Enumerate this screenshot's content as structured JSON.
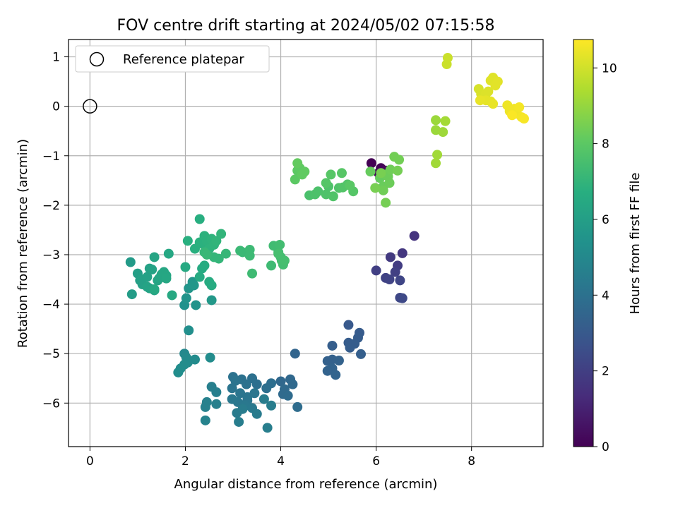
{
  "chart_data": {
    "type": "scatter",
    "title": "FOV centre drift starting at 2024/05/02 07:15:58",
    "xlabel": "Angular distance from reference (arcmin)",
    "ylabel": "Rotation from reference (arcmin)",
    "xlim": [
      -0.45,
      9.5
    ],
    "ylim": [
      -6.88,
      1.35
    ],
    "xticks": [
      0,
      2,
      4,
      6,
      8
    ],
    "yticks": [
      1,
      0,
      -1,
      -2,
      -3,
      -4,
      -5,
      -6
    ],
    "grid": true,
    "legend": {
      "position": "top-left",
      "entries": [
        {
          "label": "Reference platepar",
          "marker": "open-circle"
        }
      ]
    },
    "reference_point": {
      "x": 0,
      "y": 0
    },
    "colorbar": {
      "label": "Hours from first FF file",
      "range": [
        0,
        10.75
      ],
      "ticks": [
        0,
        2,
        4,
        6,
        8,
        10
      ],
      "colormap": "viridis"
    },
    "points": [
      [
        5.9,
        -1.15,
        0.0
      ],
      [
        6.1,
        -1.25,
        0.1
      ],
      [
        6.05,
        -1.35,
        0.15
      ],
      [
        6.15,
        -1.38,
        0.2
      ],
      [
        6.2,
        -1.3,
        0.25
      ],
      [
        6.8,
        -2.62,
        1.6
      ],
      [
        6.55,
        -2.97,
        1.7
      ],
      [
        6.3,
        -3.05,
        1.8
      ],
      [
        6.45,
        -3.22,
        1.9
      ],
      [
        6.0,
        -3.32,
        2.0
      ],
      [
        6.4,
        -3.35,
        2.05
      ],
      [
        6.2,
        -3.47,
        2.1
      ],
      [
        6.28,
        -3.5,
        2.15
      ],
      [
        6.5,
        -3.52,
        2.2
      ],
      [
        6.5,
        -3.87,
        2.3
      ],
      [
        6.55,
        -3.88,
        2.35
      ],
      [
        5.42,
        -4.42,
        3.0
      ],
      [
        5.65,
        -4.58,
        3.05
      ],
      [
        5.62,
        -4.68,
        3.1
      ],
      [
        5.42,
        -4.78,
        3.1
      ],
      [
        5.55,
        -4.8,
        3.15
      ],
      [
        5.45,
        -4.88,
        3.15
      ],
      [
        5.08,
        -4.84,
        3.2
      ],
      [
        5.68,
        -5.01,
        3.25
      ],
      [
        4.98,
        -5.15,
        3.3
      ],
      [
        5.08,
        -5.12,
        3.3
      ],
      [
        5.22,
        -5.14,
        3.35
      ],
      [
        5.08,
        -5.3,
        3.4
      ],
      [
        4.98,
        -5.35,
        3.4
      ],
      [
        5.15,
        -5.43,
        3.45
      ],
      [
        4.3,
        -5.0,
        3.5
      ],
      [
        4.0,
        -5.56,
        3.6
      ],
      [
        4.2,
        -5.52,
        3.6
      ],
      [
        4.25,
        -5.62,
        3.65
      ],
      [
        4.08,
        -5.72,
        3.7
      ],
      [
        4.05,
        -5.82,
        3.7
      ],
      [
        4.15,
        -5.85,
        3.75
      ],
      [
        4.35,
        -6.08,
        3.8
      ],
      [
        3.8,
        -5.6,
        3.85
      ],
      [
        3.7,
        -5.7,
        3.9
      ],
      [
        3.5,
        -5.62,
        3.9
      ],
      [
        3.4,
        -5.5,
        3.95
      ],
      [
        3.28,
        -5.62,
        4.0
      ],
      [
        3.18,
        -5.52,
        4.0
      ],
      [
        3.0,
        -5.47,
        4.05
      ],
      [
        3.05,
        -5.55,
        4.1
      ],
      [
        2.98,
        -5.7,
        4.1
      ],
      [
        3.15,
        -5.8,
        4.15
      ],
      [
        3.3,
        -5.88,
        4.15
      ],
      [
        3.45,
        -5.8,
        4.2
      ],
      [
        3.3,
        -5.95,
        4.2
      ],
      [
        3.1,
        -5.98,
        4.25
      ],
      [
        2.98,
        -5.92,
        4.3
      ],
      [
        3.25,
        -6.05,
        4.3
      ],
      [
        3.4,
        -6.1,
        4.35
      ],
      [
        3.5,
        -6.22,
        4.4
      ],
      [
        3.08,
        -6.2,
        4.4
      ],
      [
        3.2,
        -6.12,
        4.45
      ],
      [
        3.65,
        -5.92,
        4.45
      ],
      [
        3.8,
        -6.05,
        4.5
      ],
      [
        3.12,
        -6.38,
        4.5
      ],
      [
        3.72,
        -6.5,
        4.55
      ],
      [
        2.55,
        -5.67,
        4.6
      ],
      [
        2.65,
        -5.78,
        4.6
      ],
      [
        2.65,
        -6.02,
        4.65
      ],
      [
        2.45,
        -5.98,
        4.7
      ],
      [
        2.42,
        -6.08,
        4.7
      ],
      [
        2.42,
        -6.35,
        4.75
      ],
      [
        1.98,
        -5.0,
        5.0
      ],
      [
        2.02,
        -5.08,
        5.05
      ],
      [
        2.2,
        -5.12,
        5.1
      ],
      [
        2.05,
        -5.18,
        5.1
      ],
      [
        1.98,
        -5.22,
        5.15
      ],
      [
        2.52,
        -5.08,
        5.15
      ],
      [
        1.9,
        -5.3,
        5.2
      ],
      [
        1.85,
        -5.38,
        5.2
      ],
      [
        2.07,
        -4.53,
        5.3
      ],
      [
        1.98,
        -4.02,
        5.4
      ],
      [
        2.22,
        -4.02,
        5.45
      ],
      [
        2.02,
        -3.88,
        5.5
      ],
      [
        2.07,
        -3.68,
        5.55
      ],
      [
        2.15,
        -3.55,
        5.6
      ],
      [
        2.18,
        -3.62,
        5.65
      ],
      [
        2.55,
        -3.92,
        5.7
      ],
      [
        0.85,
        -3.15,
        5.8
      ],
      [
        0.88,
        -3.8,
        5.9
      ],
      [
        1.0,
        -3.38,
        6.0
      ],
      [
        1.05,
        -3.52,
        6.0
      ],
      [
        1.08,
        -3.5,
        6.05
      ],
      [
        1.1,
        -3.6,
        6.05
      ],
      [
        1.2,
        -3.45,
        6.1
      ],
      [
        1.25,
        -3.28,
        6.1
      ],
      [
        1.3,
        -3.3,
        6.15
      ],
      [
        1.25,
        -3.68,
        6.15
      ],
      [
        1.35,
        -3.72,
        6.2
      ],
      [
        1.2,
        -3.65,
        6.2
      ],
      [
        1.35,
        -3.05,
        6.25
      ],
      [
        1.42,
        -3.52,
        6.25
      ],
      [
        1.45,
        -3.48,
        6.3
      ],
      [
        1.5,
        -3.4,
        6.3
      ],
      [
        1.55,
        -3.35,
        6.35
      ],
      [
        1.6,
        -3.42,
        6.35
      ],
      [
        1.6,
        -3.48,
        6.4
      ],
      [
        1.65,
        -2.98,
        6.4
      ],
      [
        1.72,
        -3.82,
        6.45
      ],
      [
        1.35,
        -3.7,
        6.45
      ],
      [
        2.0,
        -3.25,
        6.5
      ],
      [
        2.3,
        -3.45,
        6.55
      ],
      [
        2.35,
        -3.28,
        6.55
      ],
      [
        2.4,
        -3.22,
        6.6
      ],
      [
        2.5,
        -3.55,
        6.6
      ],
      [
        2.55,
        -3.62,
        6.6
      ],
      [
        2.3,
        -2.28,
        6.7
      ],
      [
        2.05,
        -2.72,
        6.75
      ],
      [
        2.2,
        -2.88,
        6.75
      ],
      [
        2.3,
        -2.75,
        6.8
      ],
      [
        2.35,
        -2.78,
        6.8
      ],
      [
        2.4,
        -2.62,
        6.85
      ],
      [
        2.45,
        -2.72,
        6.85
      ],
      [
        2.5,
        -2.88,
        6.9
      ],
      [
        2.55,
        -2.68,
        6.9
      ],
      [
        2.6,
        -2.8,
        6.95
      ],
      [
        2.65,
        -2.72,
        7.0
      ],
      [
        2.75,
        -2.58,
        7.0
      ],
      [
        2.6,
        -3.05,
        7.05
      ],
      [
        2.7,
        -3.08,
        7.05
      ],
      [
        2.85,
        -2.98,
        7.1
      ],
      [
        2.4,
        -2.95,
        7.1
      ],
      [
        2.45,
        -3.0,
        7.15
      ],
      [
        3.15,
        -2.92,
        7.2
      ],
      [
        3.2,
        -2.95,
        7.2
      ],
      [
        3.35,
        -2.9,
        7.25
      ],
      [
        3.35,
        -3.02,
        7.25
      ],
      [
        3.4,
        -3.38,
        7.3
      ],
      [
        3.8,
        -3.22,
        7.3
      ],
      [
        3.85,
        -2.82,
        7.35
      ],
      [
        3.95,
        -2.95,
        7.35
      ],
      [
        3.98,
        -2.8,
        7.4
      ],
      [
        4.0,
        -3.05,
        7.4
      ],
      [
        4.02,
        -3.12,
        7.45
      ],
      [
        4.05,
        -3.2,
        7.45
      ],
      [
        4.08,
        -3.12,
        7.5
      ],
      [
        3.95,
        -2.98,
        7.5
      ],
      [
        4.6,
        -1.8,
        7.6
      ],
      [
        4.72,
        -1.78,
        7.65
      ],
      [
        4.78,
        -1.72,
        7.65
      ],
      [
        4.95,
        -1.78,
        7.7
      ],
      [
        5.0,
        -1.62,
        7.7
      ],
      [
        5.1,
        -1.82,
        7.75
      ],
      [
        5.22,
        -1.65,
        7.75
      ],
      [
        5.3,
        -1.64,
        7.8
      ],
      [
        5.4,
        -1.58,
        7.8
      ],
      [
        5.52,
        -1.72,
        7.85
      ],
      [
        4.95,
        -1.55,
        7.85
      ],
      [
        5.05,
        -1.38,
        7.9
      ],
      [
        5.28,
        -1.35,
        7.9
      ],
      [
        5.45,
        -1.6,
        7.95
      ],
      [
        4.35,
        -1.3,
        8.0
      ],
      [
        4.3,
        -1.48,
        8.0
      ],
      [
        4.4,
        -1.25,
        8.05
      ],
      [
        4.5,
        -1.32,
        8.1
      ],
      [
        4.45,
        -1.38,
        8.1
      ],
      [
        4.35,
        -1.15,
        8.15
      ],
      [
        5.88,
        -1.32,
        8.2
      ],
      [
        6.08,
        -1.45,
        8.2
      ],
      [
        6.15,
        -1.62,
        8.25
      ],
      [
        6.2,
        -1.38,
        8.25
      ],
      [
        6.25,
        -1.42,
        8.3
      ],
      [
        6.28,
        -1.55,
        8.3
      ],
      [
        6.15,
        -1.7,
        8.35
      ],
      [
        6.3,
        -1.28,
        8.35
      ],
      [
        6.38,
        -1.02,
        8.4
      ],
      [
        6.48,
        -1.08,
        8.4
      ],
      [
        6.45,
        -1.3,
        8.45
      ],
      [
        6.2,
        -1.95,
        8.45
      ],
      [
        5.98,
        -1.65,
        8.5
      ],
      [
        6.1,
        -1.35,
        8.5
      ],
      [
        7.25,
        -0.28,
        9.1
      ],
      [
        7.25,
        -0.48,
        9.1
      ],
      [
        7.4,
        -0.52,
        9.15
      ],
      [
        7.28,
        -0.98,
        9.2
      ],
      [
        7.25,
        -1.15,
        9.2
      ],
      [
        7.45,
        -0.3,
        9.25
      ],
      [
        7.5,
        0.98,
        9.9
      ],
      [
        7.48,
        0.85,
        9.9
      ],
      [
        8.15,
        0.35,
        10.1
      ],
      [
        8.2,
        0.25,
        10.15
      ],
      [
        8.3,
        0.25,
        10.2
      ],
      [
        8.35,
        0.3,
        10.2
      ],
      [
        8.4,
        0.52,
        10.25
      ],
      [
        8.45,
        0.58,
        10.25
      ],
      [
        8.5,
        0.42,
        10.3
      ],
      [
        8.55,
        0.5,
        10.3
      ],
      [
        8.3,
        0.12,
        10.35
      ],
      [
        8.4,
        0.1,
        10.35
      ],
      [
        8.45,
        0.05,
        10.4
      ],
      [
        8.18,
        0.12,
        10.4
      ],
      [
        8.75,
        0.02,
        10.5
      ],
      [
        8.8,
        -0.1,
        10.5
      ],
      [
        8.9,
        -0.05,
        10.55
      ],
      [
        8.95,
        -0.15,
        10.55
      ],
      [
        9.0,
        -0.02,
        10.6
      ],
      [
        9.05,
        -0.22,
        10.6
      ],
      [
        9.1,
        -0.25,
        10.65
      ],
      [
        8.85,
        -0.18,
        10.7
      ]
    ]
  }
}
